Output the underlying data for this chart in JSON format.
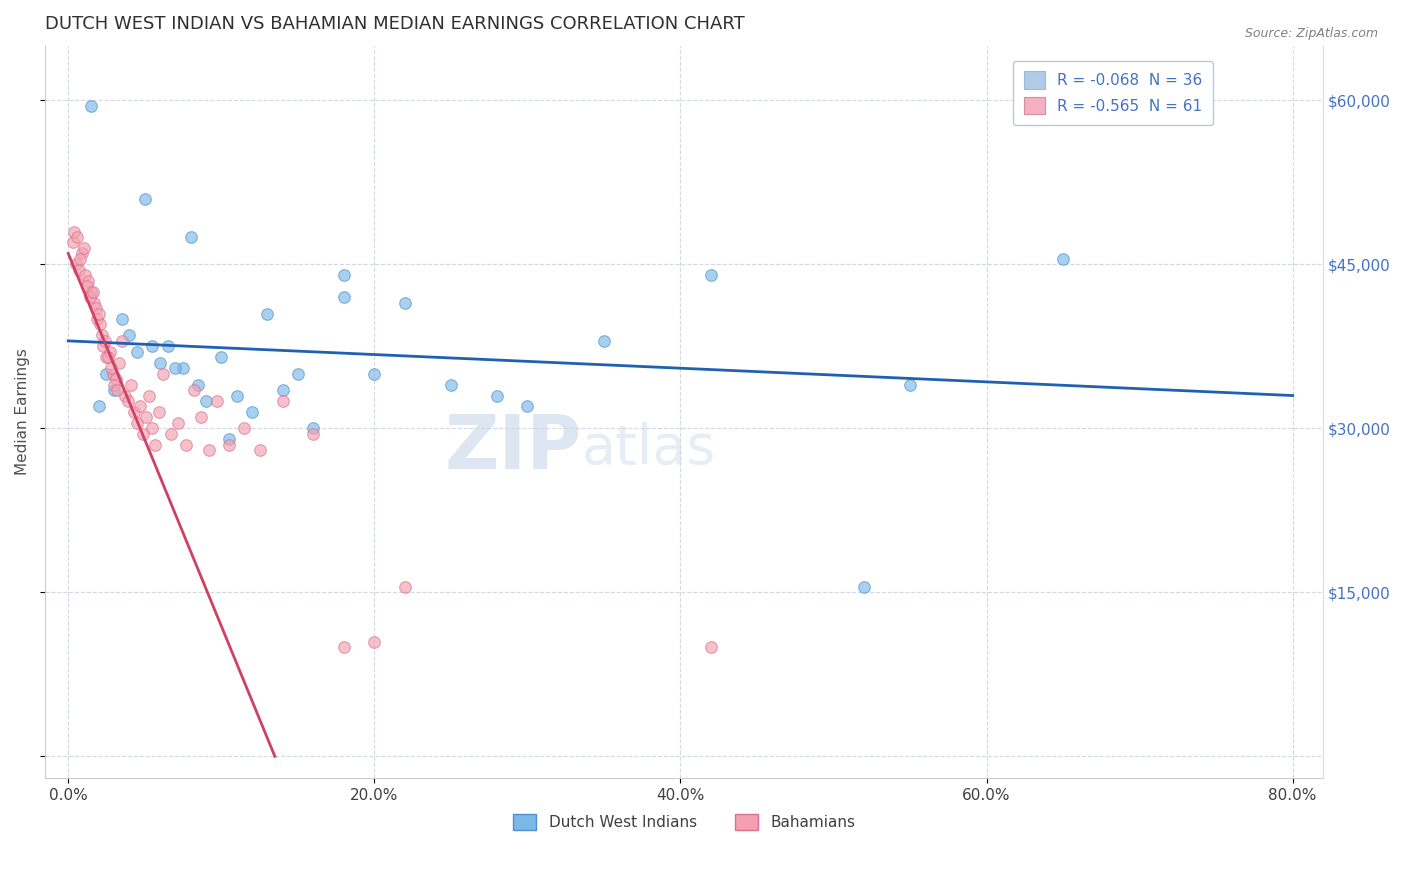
{
  "title": "DUTCH WEST INDIAN VS BAHAMIAN MEDIAN EARNINGS CORRELATION CHART",
  "source": "Source: ZipAtlas.com",
  "xlabel_values": [
    0.0,
    20.0,
    40.0,
    60.0,
    80.0
  ],
  "ylabel_values": [
    0,
    15000,
    30000,
    45000,
    60000
  ],
  "ylabel_ticks": [
    "",
    "$15,000",
    "$30,000",
    "$45,000",
    "$60,000"
  ],
  "ylabel_right_ticks": [
    "$15,000",
    "$30,000",
    "$45,000",
    "$60,000"
  ],
  "ylabel_right_values": [
    15000,
    30000,
    45000,
    60000
  ],
  "ylabel_label": "Median Earnings",
  "xlim": [
    -1.5,
    82
  ],
  "ylim": [
    -2000,
    65000
  ],
  "watermark_zip": "ZIP",
  "watermark_atlas": "atlas",
  "blue_scatter_x": [
    1.5,
    5.0,
    8.0,
    18.0,
    3.5,
    4.5,
    7.5,
    10.0,
    13.0,
    18.0,
    22.0,
    35.0,
    42.0,
    52.0,
    65.0,
    6.0,
    9.0,
    12.0,
    16.0,
    25.0,
    30.0,
    20.0,
    4.0,
    6.5,
    8.5,
    11.0,
    14.0,
    28.0,
    3.0,
    5.5,
    7.0,
    10.5,
    15.0,
    55.0,
    2.0,
    2.5
  ],
  "blue_scatter_y": [
    59500,
    51000,
    47500,
    44000,
    40000,
    37000,
    35500,
    36500,
    40500,
    42000,
    41500,
    38000,
    44000,
    15500,
    45500,
    36000,
    32500,
    31500,
    30000,
    34000,
    32000,
    35000,
    38500,
    37500,
    34000,
    33000,
    33500,
    33000,
    33500,
    37500,
    35500,
    29000,
    35000,
    34000,
    32000,
    35000
  ],
  "pink_scatter_x": [
    0.3,
    0.5,
    0.7,
    0.9,
    1.1,
    1.3,
    1.5,
    1.7,
    1.9,
    2.1,
    2.3,
    2.5,
    2.7,
    2.9,
    3.1,
    3.3,
    3.5,
    3.7,
    3.9,
    4.1,
    4.3,
    4.5,
    4.7,
    4.9,
    5.1,
    5.3,
    5.5,
    5.7,
    5.9,
    6.2,
    6.7,
    7.2,
    7.7,
    8.2,
    8.7,
    9.2,
    9.7,
    10.5,
    11.5,
    12.5,
    14.0,
    16.0,
    18.0,
    20.0,
    22.0,
    0.4,
    0.6,
    0.8,
    1.0,
    1.2,
    1.4,
    1.6,
    1.8,
    2.0,
    2.2,
    2.4,
    2.6,
    2.8,
    3.0,
    3.2,
    42.0
  ],
  "pink_scatter_y": [
    47000,
    45000,
    44500,
    46000,
    44000,
    43500,
    42500,
    41500,
    40000,
    39500,
    37500,
    36500,
    37000,
    35000,
    34500,
    36000,
    38000,
    33000,
    32500,
    34000,
    31500,
    30500,
    32000,
    29500,
    31000,
    33000,
    30000,
    28500,
    31500,
    35000,
    29500,
    30500,
    28500,
    33500,
    31000,
    28000,
    32500,
    28500,
    30000,
    28000,
    32500,
    29500,
    10000,
    10500,
    15500,
    48000,
    47500,
    45500,
    46500,
    43000,
    42000,
    42500,
    41000,
    40500,
    38500,
    38000,
    36500,
    35500,
    34000,
    33500,
    10000
  ],
  "blue_trendline_x": [
    0,
    80
  ],
  "blue_trendline_y": [
    38000,
    33000
  ],
  "pink_trendline_x": [
    0,
    13.5
  ],
  "pink_trendline_y": [
    46000,
    0
  ],
  "blue_color": "#7ab8e8",
  "blue_edge": "#5090c8",
  "pink_color": "#f4a0b0",
  "pink_edge": "#d87090",
  "blue_trend_color": "#2060b0",
  "pink_trend_color": "#d04060",
  "grid_color": "#c8d0dc",
  "grid_style": "--",
  "grid_alpha": 0.8,
  "background_color": "#ffffff",
  "title_color": "#303030",
  "title_fontsize": 13,
  "axis_label_color": "#505050",
  "tick_color_y_right": "#4472c4",
  "tick_color_x": "#404040",
  "legend_fontsize": 11,
  "ylabel_fontsize": 11,
  "scatter_size": 70,
  "scatter_alpha": 0.65,
  "legend_label_1": "R = -0.068  N = 36",
  "legend_label_2": "R = -0.565  N = 61",
  "legend_color_1": "#b0cce8",
  "legend_color_2": "#f4b0c0",
  "bottom_label_blue": "Dutch West Indians",
  "bottom_label_pink": "Bahamians"
}
